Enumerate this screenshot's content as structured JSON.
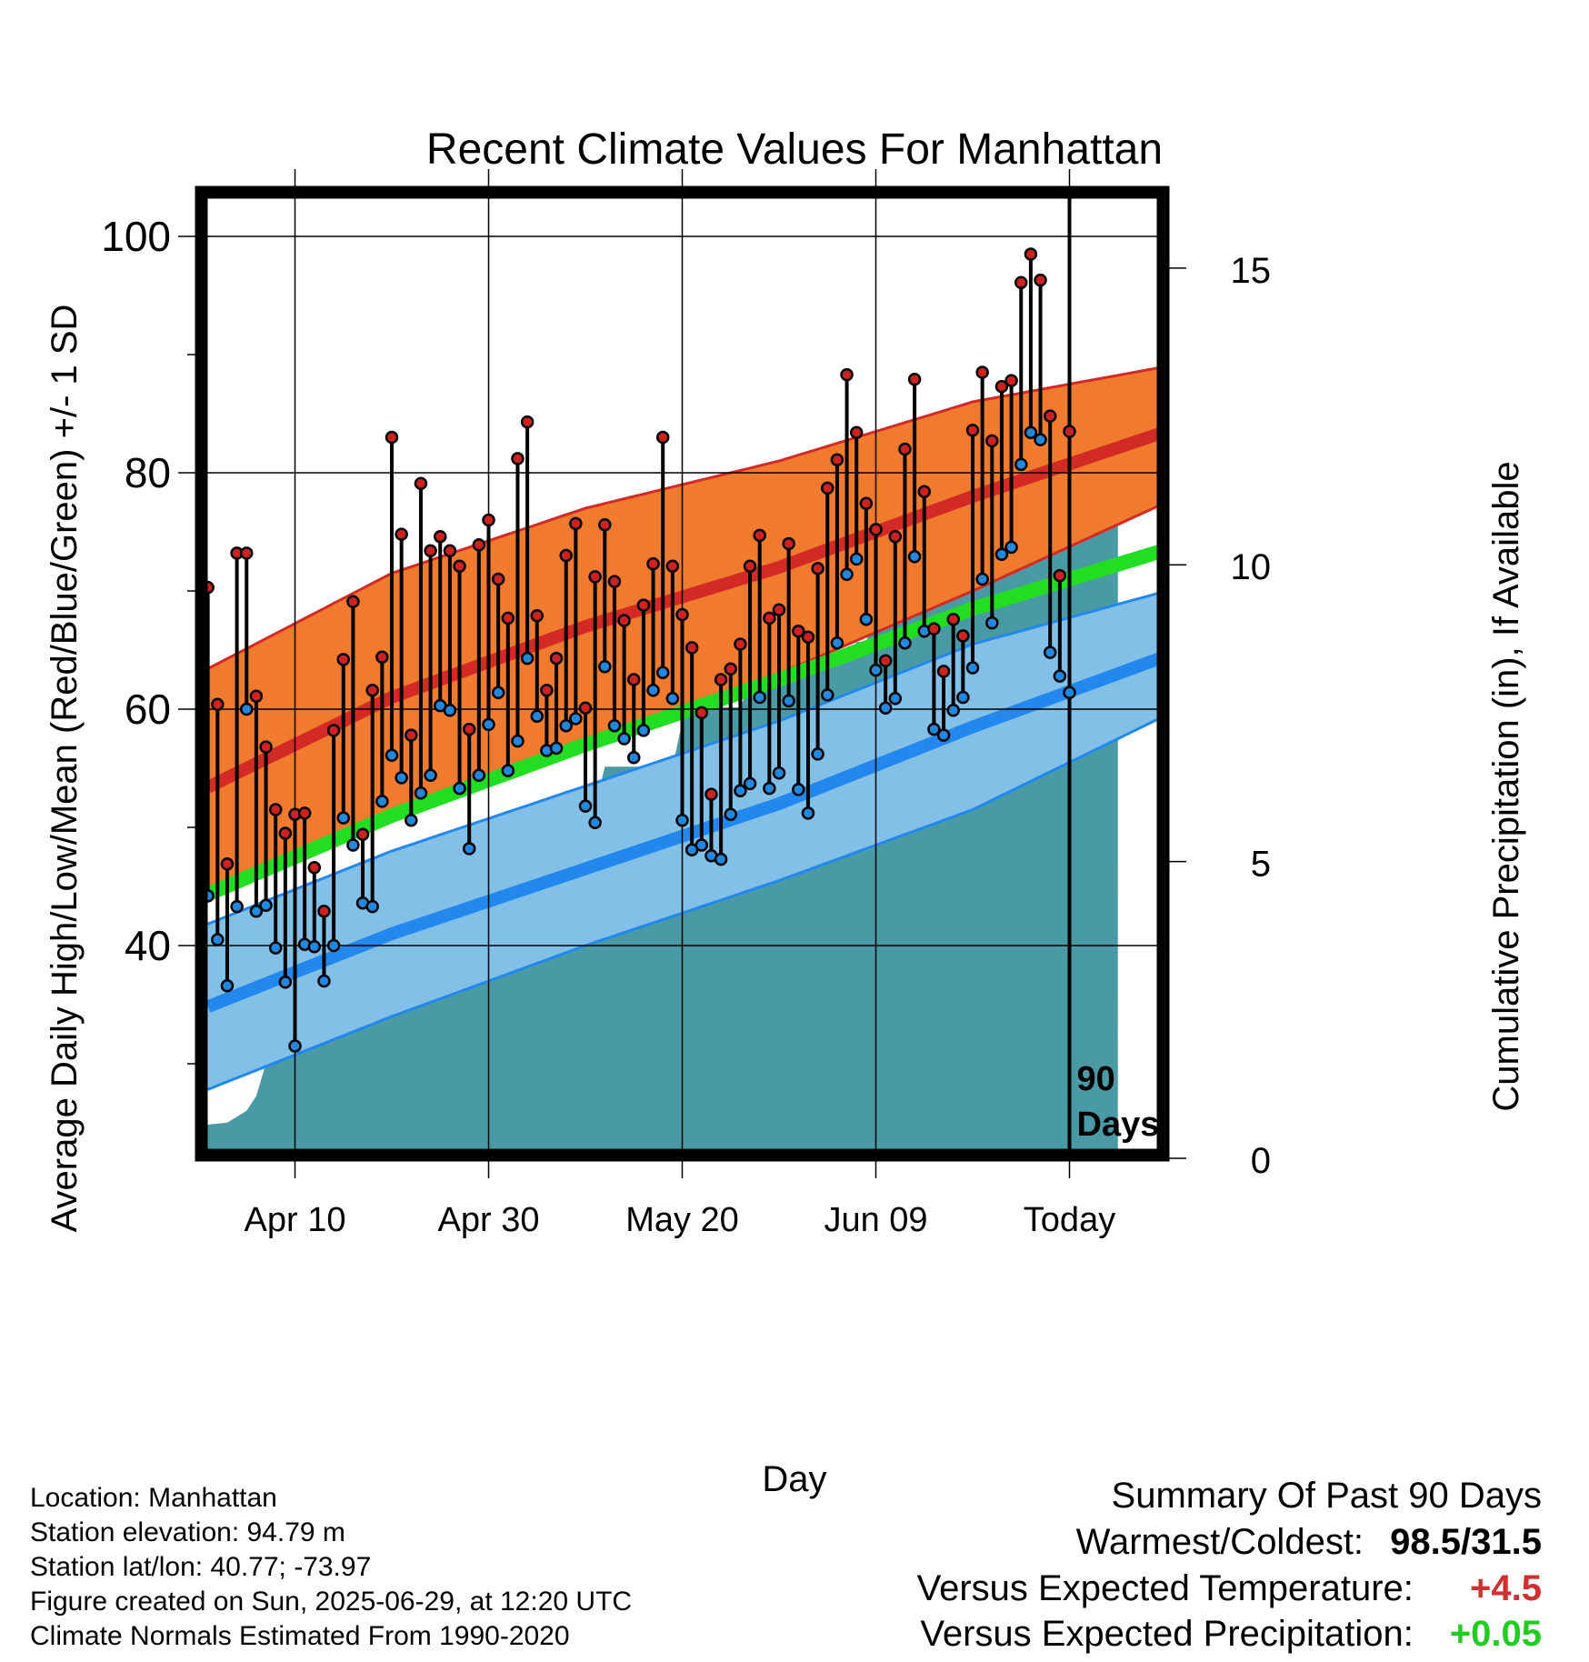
{
  "chart_data": {
    "type": "line",
    "title": "Recent Climate Values For Manhattan",
    "xlabel": "Day",
    "ylabel": "Average Daily High/Low/Mean (Red/Blue/Green) +/- 1 SD",
    "y2label": "Cumulative Precipitation (in), If Available",
    "x_ticks": [
      {
        "label": "Apr 10",
        "day": 10
      },
      {
        "label": "Apr 30",
        "day": 30
      },
      {
        "label": "May 20",
        "day": 50
      },
      {
        "label": "Jun 09",
        "day": 70
      },
      {
        "label": "Today",
        "day": 90
      }
    ],
    "xlim": [
      0,
      100
    ],
    "ylim": [
      22,
      104
    ],
    "y_ticks": [
      40,
      60,
      80,
      100
    ],
    "y_minor_ticks": [
      30,
      50,
      70,
      90
    ],
    "y2lim": [
      0,
      16.33
    ],
    "y2_ticks": [
      0,
      5,
      10,
      15
    ],
    "window_label": "90 Days",
    "grid": true,
    "colors": {
      "high_band": "#f07a2e",
      "high_mean": "#d42a25",
      "band_edge_high": "#d42a25",
      "low_band": "#82c0e8",
      "low_mean": "#2288ee",
      "band_edge_low": "#2288ee",
      "mean": "#22dd22",
      "precip": "#4a9aa5",
      "high_dot": "#cc2222",
      "low_dot": "#2288dd"
    },
    "normal_high": {
      "day": [
        0,
        20,
        40,
        60,
        80,
        100
      ],
      "mean": [
        53,
        61,
        67,
        72,
        78,
        83.5
      ],
      "sd": 10,
      "upper": [
        63,
        71.5,
        77,
        81,
        86,
        89
      ],
      "lower": [
        43.5,
        51,
        57.5,
        63,
        70,
        77.5
      ]
    },
    "normal_low": {
      "day": [
        0,
        20,
        40,
        60,
        80,
        100
      ],
      "mean": [
        34.5,
        41,
        46.5,
        52,
        58.5,
        64.5
      ],
      "upper": [
        41.5,
        48,
        53.5,
        59,
        65.5,
        70
      ],
      "lower": [
        27.5,
        34,
        40,
        45.5,
        51.5,
        59.5
      ]
    },
    "normal_mean": {
      "day": [
        0,
        20,
        40,
        60,
        80,
        100
      ],
      "values": [
        44,
        51,
        57,
        62.5,
        68.5,
        73.5
      ]
    },
    "daily_high": [
      70.3,
      60.4,
      46.9,
      73.2,
      73.2,
      61.1,
      56.8,
      51.5,
      49.5,
      51.1,
      51.2,
      46.6,
      42.9,
      58.2,
      64.2,
      69.1,
      49.4,
      61.6,
      64.4,
      83.0,
      74.8,
      57.8,
      79.1,
      73.4,
      74.6,
      73.4,
      72.1,
      58.3,
      73.9,
      76.0,
      71.0,
      67.7,
      81.2,
      84.3,
      67.9,
      61.6,
      64.3,
      73.0,
      75.7,
      60.1,
      71.2,
      75.6,
      70.8,
      67.5,
      62.5,
      68.8,
      72.3,
      83.0,
      72.1,
      68.0,
      65.2,
      59.7,
      52.8,
      62.5,
      63.4,
      65.5,
      72.1,
      74.7,
      67.7,
      68.4,
      74.0,
      66.6,
      66.1,
      71.9,
      78.7,
      81.1,
      88.3,
      83.4,
      77.4,
      75.2,
      64.1,
      74.6,
      82.0,
      87.9,
      78.4,
      66.8,
      63.2,
      67.6,
      66.2,
      83.6,
      88.5,
      82.7,
      87.3,
      87.8,
      96.1,
      98.5,
      96.3,
      84.8,
      71.3,
      83.5
    ],
    "daily_low": [
      44.2,
      40.5,
      36.6,
      43.3,
      60.0,
      42.9,
      43.4,
      39.8,
      36.9,
      31.5,
      40.1,
      39.9,
      37.0,
      40.0,
      50.8,
      48.5,
      43.6,
      43.3,
      52.2,
      56.1,
      54.2,
      50.6,
      52.9,
      54.4,
      60.3,
      59.9,
      53.3,
      48.2,
      54.4,
      58.7,
      61.4,
      54.8,
      57.3,
      64.3,
      59.4,
      56.5,
      56.7,
      58.6,
      59.2,
      51.8,
      50.4,
      63.6,
      58.6,
      57.5,
      55.9,
      58.2,
      61.6,
      63.1,
      60.9,
      50.6,
      48.1,
      48.5,
      47.6,
      47.3,
      51.1,
      53.1,
      53.7,
      61.0,
      53.3,
      54.6,
      60.7,
      53.2,
      51.2,
      56.2,
      61.2,
      65.6,
      71.4,
      72.7,
      67.6,
      63.3,
      60.1,
      60.9,
      65.6,
      72.9,
      66.6,
      58.3,
      57.8,
      59.9,
      61.0,
      63.5,
      71.0,
      67.3,
      73.1,
      73.7,
      80.7,
      83.4,
      82.8,
      64.8,
      62.8,
      61.4
    ],
    "precip_cumulative": {
      "day": [
        0,
        3,
        5,
        6,
        7,
        8,
        10,
        12,
        20,
        21,
        24,
        27,
        28,
        30,
        32,
        33,
        34,
        35,
        37,
        41,
        42,
        43,
        45,
        49,
        50,
        51,
        54,
        56,
        57,
        59,
        61,
        62,
        64,
        67,
        68,
        69,
        70,
        71,
        72,
        75,
        76,
        78,
        80,
        82,
        83,
        85,
        87,
        88,
        90,
        95
      ],
      "values": [
        0.55,
        0.6,
        0.8,
        1.05,
        1.6,
        1.75,
        1.75,
        2.7,
        2.7,
        3.5,
        3.5,
        3.5,
        3.7,
        4.1,
        4.7,
        5.0,
        5.0,
        5.4,
        5.4,
        5.9,
        6.6,
        6.6,
        6.6,
        6.6,
        7.35,
        7.6,
        7.6,
        7.6,
        8.0,
        8.0,
        8.35,
        8.35,
        8.35,
        8.35,
        8.7,
        8.7,
        9.2,
        9.6,
        9.6,
        9.8,
        9.8,
        9.95,
        10.3,
        10.6,
        10.65,
        11.0,
        11.05,
        11.1,
        11.2,
        11.2
      ]
    }
  },
  "info": {
    "location": "Location: Manhattan",
    "elevation": "Station elevation: 94.79 m",
    "latlon": "Station lat/lon: 40.77; -73.97",
    "created": "Figure created on Sun, 2025-06-29, at 12:20 UTC",
    "normals": "Climate Normals Estimated From 1990-2020"
  },
  "summary": {
    "heading": "Summary Of Past 90 Days",
    "warm_cold_label": "Warmest/Coldest:",
    "warm_cold_value": "98.5/31.5",
    "temp_label": "Versus Expected Temperature:",
    "temp_value": "+4.5",
    "temp_color": "#d03030",
    "precip_label": "Versus Expected Precipitation:",
    "precip_value": "+0.05",
    "precip_color": "#22cc22"
  }
}
